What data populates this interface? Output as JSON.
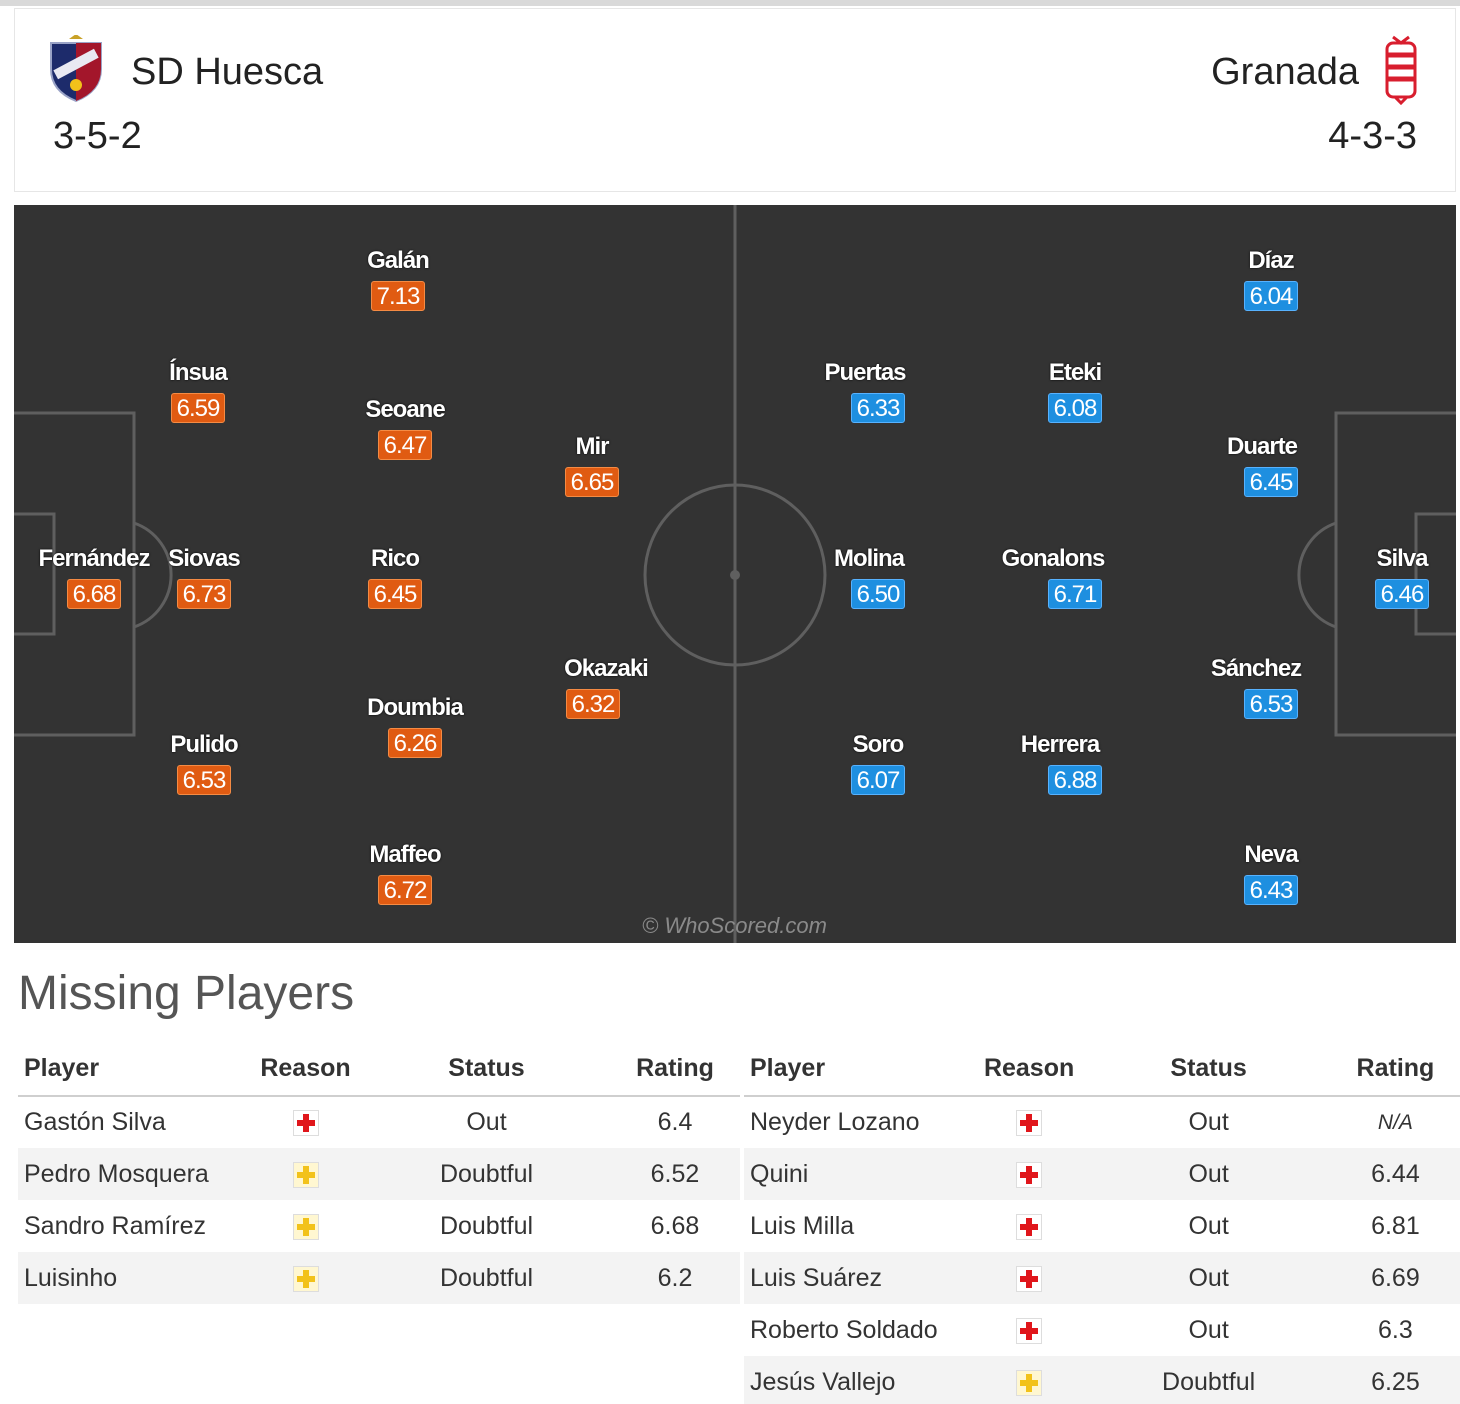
{
  "home": {
    "name": "SD Huesca",
    "formation": "3-5-2",
    "crest_icon": "huesca-crest-icon",
    "color": "#e05b12",
    "players": [
      {
        "name": "Fernández",
        "rating": "6.68"
      },
      {
        "name": "Ínsua",
        "rating": "6.59"
      },
      {
        "name": "Siovas",
        "rating": "6.73"
      },
      {
        "name": "Pulido",
        "rating": "6.53"
      },
      {
        "name": "Galán",
        "rating": "7.13"
      },
      {
        "name": "Seoane",
        "rating": "6.47"
      },
      {
        "name": "Rico",
        "rating": "6.45"
      },
      {
        "name": "Doumbia",
        "rating": "6.26"
      },
      {
        "name": "Maffeo",
        "rating": "6.72"
      },
      {
        "name": "Mir",
        "rating": "6.65"
      },
      {
        "name": "Okazaki",
        "rating": "6.32"
      }
    ]
  },
  "away": {
    "name": "Granada",
    "formation": "4-3-3",
    "crest_icon": "granada-crest-icon",
    "color": "#1e8fe0",
    "players": [
      {
        "name": "Silva",
        "rating": "6.46"
      },
      {
        "name": "Díaz",
        "rating": "6.04"
      },
      {
        "name": "Duarte",
        "rating": "6.45"
      },
      {
        "name": "Sánchez",
        "rating": "6.53"
      },
      {
        "name": "Neva",
        "rating": "6.43"
      },
      {
        "name": "Eteki",
        "rating": "6.08"
      },
      {
        "name": "Gonalons",
        "rating": "6.71"
      },
      {
        "name": "Herrera",
        "rating": "6.88"
      },
      {
        "name": "Puertas",
        "rating": "6.33"
      },
      {
        "name": "Molina",
        "rating": "6.50"
      },
      {
        "name": "Soro",
        "rating": "6.07"
      }
    ]
  },
  "watermark": "© WhoScored.com",
  "missing": {
    "title": "Missing Players",
    "headers": {
      "player": "Player",
      "reason": "Reason",
      "status": "Status",
      "rating": "Rating"
    },
    "home": [
      {
        "player": "Gastón Silva",
        "reason_icon": "injury-icon",
        "status": "Out",
        "rating": "6.4"
      },
      {
        "player": "Pedro Mosquera",
        "reason_icon": "doubtful-icon",
        "status": "Doubtful",
        "rating": "6.52"
      },
      {
        "player": "Sandro Ramírez",
        "reason_icon": "doubtful-icon",
        "status": "Doubtful",
        "rating": "6.68"
      },
      {
        "player": "Luisinho",
        "reason_icon": "doubtful-icon",
        "status": "Doubtful",
        "rating": "6.2"
      }
    ],
    "away": [
      {
        "player": "Neyder Lozano",
        "reason_icon": "injury-icon",
        "status": "Out",
        "rating": "N/A"
      },
      {
        "player": "Quini",
        "reason_icon": "injury-icon",
        "status": "Out",
        "rating": "6.44"
      },
      {
        "player": "Luis Milla",
        "reason_icon": "injury-icon",
        "status": "Out",
        "rating": "6.81"
      },
      {
        "player": "Luis Suárez",
        "reason_icon": "injury-icon",
        "status": "Out",
        "rating": "6.69"
      },
      {
        "player": "Roberto Soldado",
        "reason_icon": "injury-icon",
        "status": "Out",
        "rating": "6.3"
      },
      {
        "player": "Jesús Vallejo",
        "reason_icon": "doubtful-icon",
        "status": "Doubtful",
        "rating": "6.25"
      }
    ]
  }
}
